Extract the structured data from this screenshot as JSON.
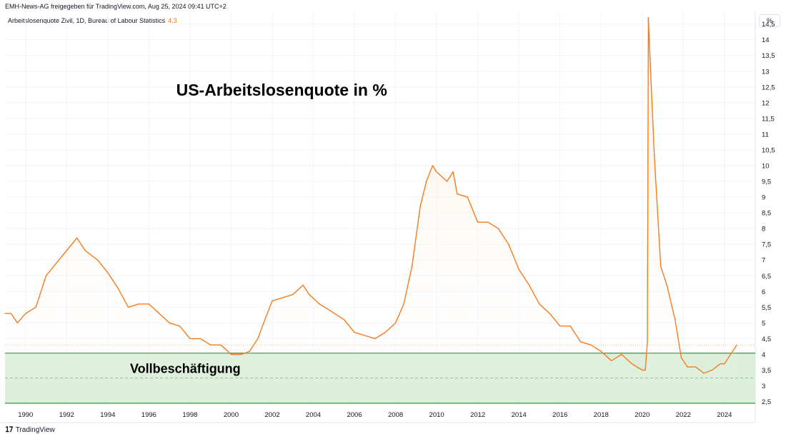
{
  "header": {
    "attribution": "EMH-News-AG freigegeben für TradingView.com, Aug 25, 2024 09:41 UTC+2",
    "series_label": "Arbeitslosenquote Zivil, 1D, Bureau of Labour Statistics",
    "last_value": "4,3",
    "unit_label": "%"
  },
  "footer": {
    "logo_text": "TradingView",
    "logo_icon": "tradingview-logo-icon"
  },
  "colors": {
    "line": "#f57c1f",
    "fill_top": "#fde9d6",
    "zone_fill": "#d6ecd4",
    "zone_line": "#43a047",
    "grid": "#f0f3fa"
  },
  "chart_data": {
    "type": "area",
    "title": "US-Arbeitslosenquote in %",
    "xlabel": "",
    "ylabel": "",
    "xlim": [
      1989.0,
      2025.5
    ],
    "ylim": [
      2.4,
      14.9
    ],
    "x_ticks": [
      "1990",
      "1992",
      "1994",
      "1996",
      "1998",
      "2000",
      "2002",
      "2004",
      "2006",
      "2008",
      "2010",
      "2012",
      "2014",
      "2016",
      "2018",
      "2020",
      "2022",
      "2024"
    ],
    "y_ticks": [
      "2,5",
      "3",
      "3,5",
      "4",
      "4,5",
      "5",
      "5,5",
      "6",
      "6,5",
      "7",
      "7,5",
      "8",
      "8,5",
      "9",
      "9,5",
      "10",
      "10,5",
      "11",
      "11,5",
      "12",
      "12,5",
      "13",
      "13,5",
      "14",
      "14,5"
    ],
    "grid": true,
    "series": [
      {
        "name": "Arbeitslosenquote Zivil",
        "x": [
          1989.0,
          1989.3,
          1989.6,
          1990.0,
          1990.5,
          1991.0,
          1991.5,
          1992.0,
          1992.5,
          1992.9,
          1993.5,
          1994.0,
          1994.5,
          1995.0,
          1995.5,
          1996.0,
          1996.5,
          1997.0,
          1997.5,
          1998.0,
          1998.5,
          1999.0,
          1999.5,
          2000.0,
          2000.5,
          2000.9,
          2001.3,
          2001.7,
          2002.0,
          2002.5,
          2003.0,
          2003.5,
          2003.8,
          2004.3,
          2004.8,
          2005.5,
          2006.0,
          2006.5,
          2007.0,
          2007.5,
          2008.0,
          2008.4,
          2008.8,
          2009.2,
          2009.5,
          2009.8,
          2010.0,
          2010.5,
          2010.8,
          2011.0,
          2011.5,
          2012.0,
          2012.5,
          2013.0,
          2013.5,
          2014.0,
          2014.5,
          2015.0,
          2015.5,
          2016.0,
          2016.5,
          2017.0,
          2017.5,
          2018.0,
          2018.5,
          2019.0,
          2019.5,
          2020.0,
          2020.15,
          2020.25,
          2020.3,
          2020.4,
          2020.6,
          2020.9,
          2021.2,
          2021.6,
          2021.9,
          2022.2,
          2022.6,
          2023.0,
          2023.4,
          2023.8,
          2024.0,
          2024.3,
          2024.6
        ],
        "values": [
          5.3,
          5.3,
          5.0,
          5.3,
          5.5,
          6.5,
          6.9,
          7.3,
          7.7,
          7.3,
          7.0,
          6.6,
          6.1,
          5.5,
          5.6,
          5.6,
          5.3,
          5.0,
          4.9,
          4.5,
          4.5,
          4.3,
          4.3,
          4.0,
          4.0,
          4.1,
          4.5,
          5.2,
          5.7,
          5.8,
          5.9,
          6.2,
          5.9,
          5.6,
          5.4,
          5.1,
          4.7,
          4.6,
          4.5,
          4.7,
          5.0,
          5.6,
          6.8,
          8.7,
          9.5,
          10.0,
          9.8,
          9.5,
          9.8,
          9.1,
          9.0,
          8.2,
          8.2,
          8.0,
          7.5,
          6.7,
          6.2,
          5.6,
          5.3,
          4.9,
          4.9,
          4.4,
          4.3,
          4.1,
          3.8,
          4.0,
          3.7,
          3.5,
          3.5,
          4.4,
          14.7,
          13.1,
          10.2,
          6.8,
          6.2,
          5.1,
          3.9,
          3.6,
          3.6,
          3.4,
          3.5,
          3.7,
          3.7,
          4.0,
          4.3
        ]
      }
    ],
    "annotations": [
      {
        "text": "US-Arbeitslosenquote in %",
        "x": 2008.8,
        "y": 12.4
      },
      {
        "text": "Vollbeschäftigung",
        "x": 1997.0,
        "y": 3.55
      }
    ],
    "zone": {
      "label": "Vollbeschäftigung",
      "upper": 4.04,
      "lower": 2.45,
      "dashed": 3.25
    },
    "last_value_line": 4.3
  }
}
